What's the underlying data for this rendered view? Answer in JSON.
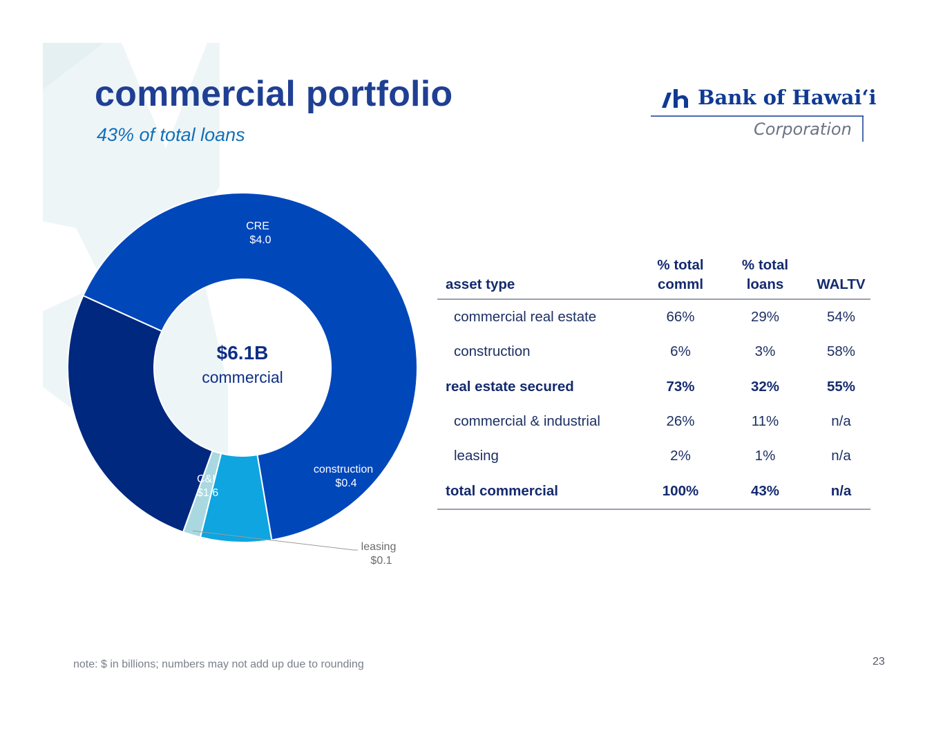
{
  "slide": {
    "title": "commercial portfolio",
    "subtitle": "43% of total loans",
    "note": "note: $ in billions; numbers may not add up due to rounding",
    "page_number": "23"
  },
  "logo": {
    "name": "Bank of Hawaiʻi",
    "sub": "Corporation",
    "color": "#0f3a93"
  },
  "colors": {
    "title": "#1f3f93",
    "subtitle": "#1270b8",
    "watermark": "#eef5f7"
  },
  "chart_data": {
    "type": "pie",
    "style": "donut",
    "unit": "$ in billions",
    "center_value": "$6.1B",
    "center_label": "commercial",
    "slices": [
      {
        "name": "CRE",
        "value_label": "$4.0",
        "value": 4.0,
        "color": "#0047ba",
        "label_color": "#ffffff"
      },
      {
        "name": "construction",
        "value_label": "$0.4",
        "value": 0.4,
        "color": "#0ea5e0",
        "label_color": "#ffffff"
      },
      {
        "name": "leasing",
        "value_label": "$0.1",
        "value": 0.1,
        "color": "#a9d8e0",
        "label_color": "#6b6b6b"
      },
      {
        "name": "C&I",
        "value_label": "$1.6",
        "value": 1.6,
        "color": "#00287f",
        "label_color": "#ffffff"
      }
    ]
  },
  "table": {
    "headers": {
      "asset_type": "asset type",
      "pct_comml_line1": "% total",
      "pct_comml_line2": "comml",
      "pct_loans_line1": "% total",
      "pct_loans_line2": "loans",
      "waltv": "WALTV"
    },
    "rows": [
      {
        "name": "commercial real estate",
        "pct_comml": "66%",
        "pct_loans": "29%",
        "waltv": "54%"
      },
      {
        "name": "construction",
        "pct_comml": "6%",
        "pct_loans": "3%",
        "waltv": "58%"
      },
      {
        "name": "real estate secured",
        "pct_comml": "73%",
        "pct_loans": "32%",
        "waltv": "55%"
      },
      {
        "name": "commercial & industrial",
        "pct_comml": "26%",
        "pct_loans": "11%",
        "waltv": "n/a"
      },
      {
        "name": "leasing",
        "pct_comml": "2%",
        "pct_loans": "1%",
        "waltv": "n/a"
      },
      {
        "name": "total commercial",
        "pct_comml": "100%",
        "pct_loans": "43%",
        "waltv": "n/a"
      }
    ]
  }
}
